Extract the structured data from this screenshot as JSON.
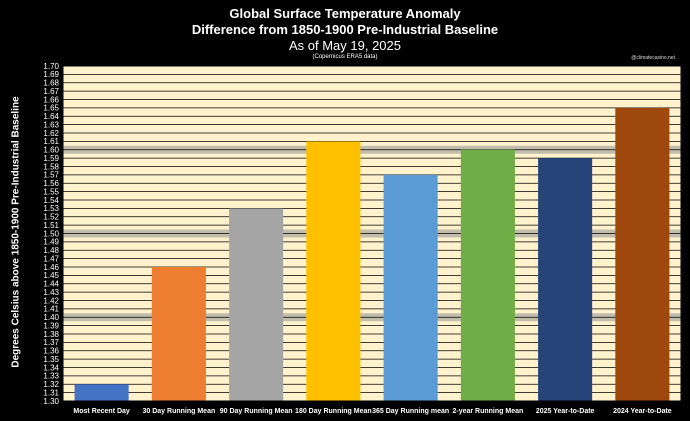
{
  "chart_data": {
    "type": "bar",
    "title": "Global Surface Temperature Anomaly",
    "subtitle": "Difference from 1850-1900 Pre-Industrial Baseline",
    "date_line": "As of May 19, 2025",
    "source_note": "(Copernicus ERA5 data)",
    "credit": "@climatecasino.net",
    "xlabel": "",
    "ylabel": "Degrees Celsius above 1850-1900 Pre-Industrial Baseline",
    "ylim": [
      1.3,
      1.7
    ],
    "ytick_step": 0.01,
    "grid": true,
    "highlight_lines": [
      1.4,
      1.5,
      1.6
    ],
    "categories": [
      "Most Recent Day",
      "30 Day Running Mean",
      "90 Day Running Mean",
      "180 Day Running Mean",
      "365 Day Running mean",
      "2-year Running Mean",
      "2025 Year-to-Date",
      "2024 Year-to-Date"
    ],
    "values": [
      1.32,
      1.46,
      1.53,
      1.61,
      1.57,
      1.6,
      1.59,
      1.65
    ],
    "colors": [
      "#4472C4",
      "#ED7D31",
      "#A5A5A5",
      "#FFC000",
      "#5B9BD5",
      "#70AD47",
      "#264478",
      "#9E480E"
    ],
    "plot_background": "#FFF2CC"
  }
}
